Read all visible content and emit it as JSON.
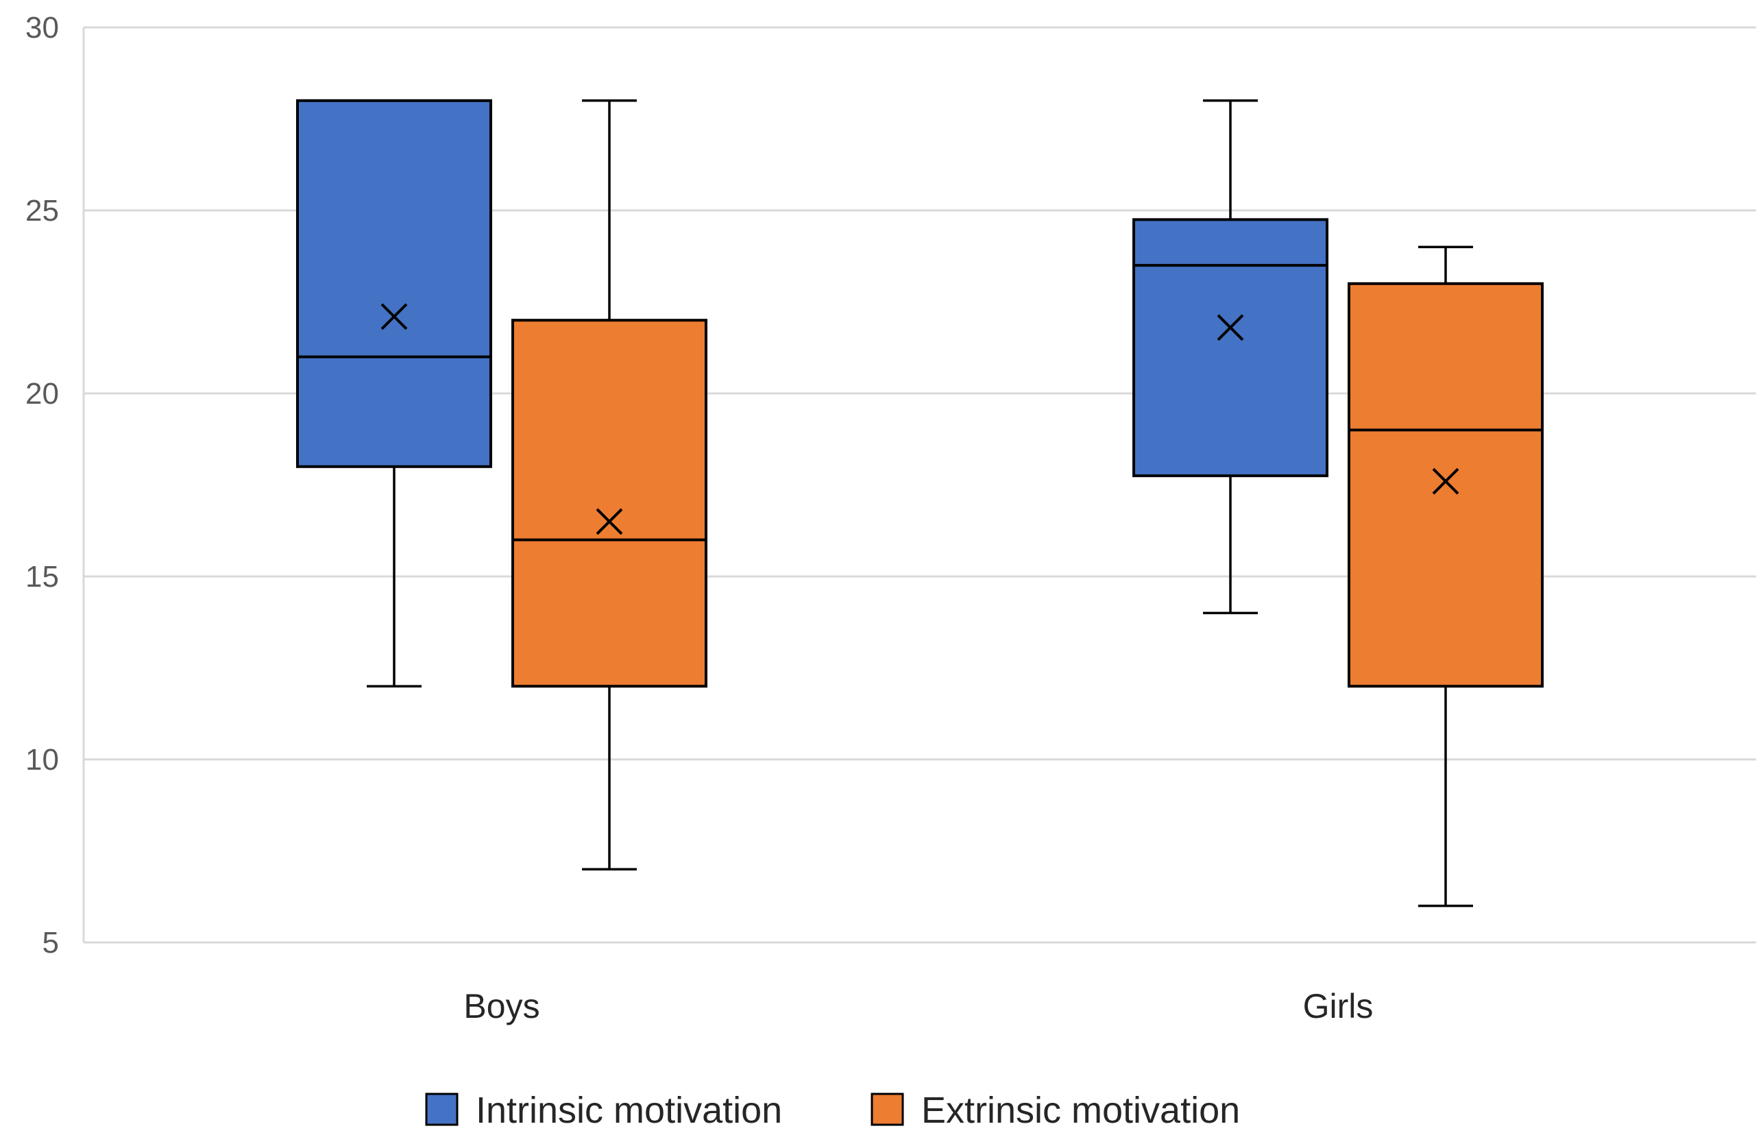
{
  "chart_data": {
    "type": "boxplot",
    "title": "",
    "xlabel": "",
    "ylabel": "",
    "ylim": [
      5,
      30
    ],
    "yticks": [
      5,
      10,
      15,
      20,
      25,
      30
    ],
    "grid": true,
    "legend_position": "bottom",
    "categories": [
      "Boys",
      "Girls"
    ],
    "series": [
      {
        "name": "Intrinsic motivation",
        "color": "#4472C4",
        "boxes": [
          {
            "category": "Boys",
            "min": 12,
            "q1": 18,
            "median": 21,
            "q3": 28,
            "max": 28,
            "mean": 22.1
          },
          {
            "category": "Girls",
            "min": 14,
            "q1": 17.75,
            "median": 23.5,
            "q3": 24.75,
            "max": 28,
            "mean": 21.8
          }
        ]
      },
      {
        "name": "Extrinsic motivation",
        "color": "#ED7D31",
        "boxes": [
          {
            "category": "Boys",
            "min": 7,
            "q1": 12,
            "median": 16,
            "q3": 22,
            "max": 28,
            "mean": 16.5
          },
          {
            "category": "Girls",
            "min": 6,
            "q1": 12,
            "median": 19,
            "q3": 23,
            "max": 24,
            "mean": 17.6
          }
        ]
      }
    ]
  }
}
